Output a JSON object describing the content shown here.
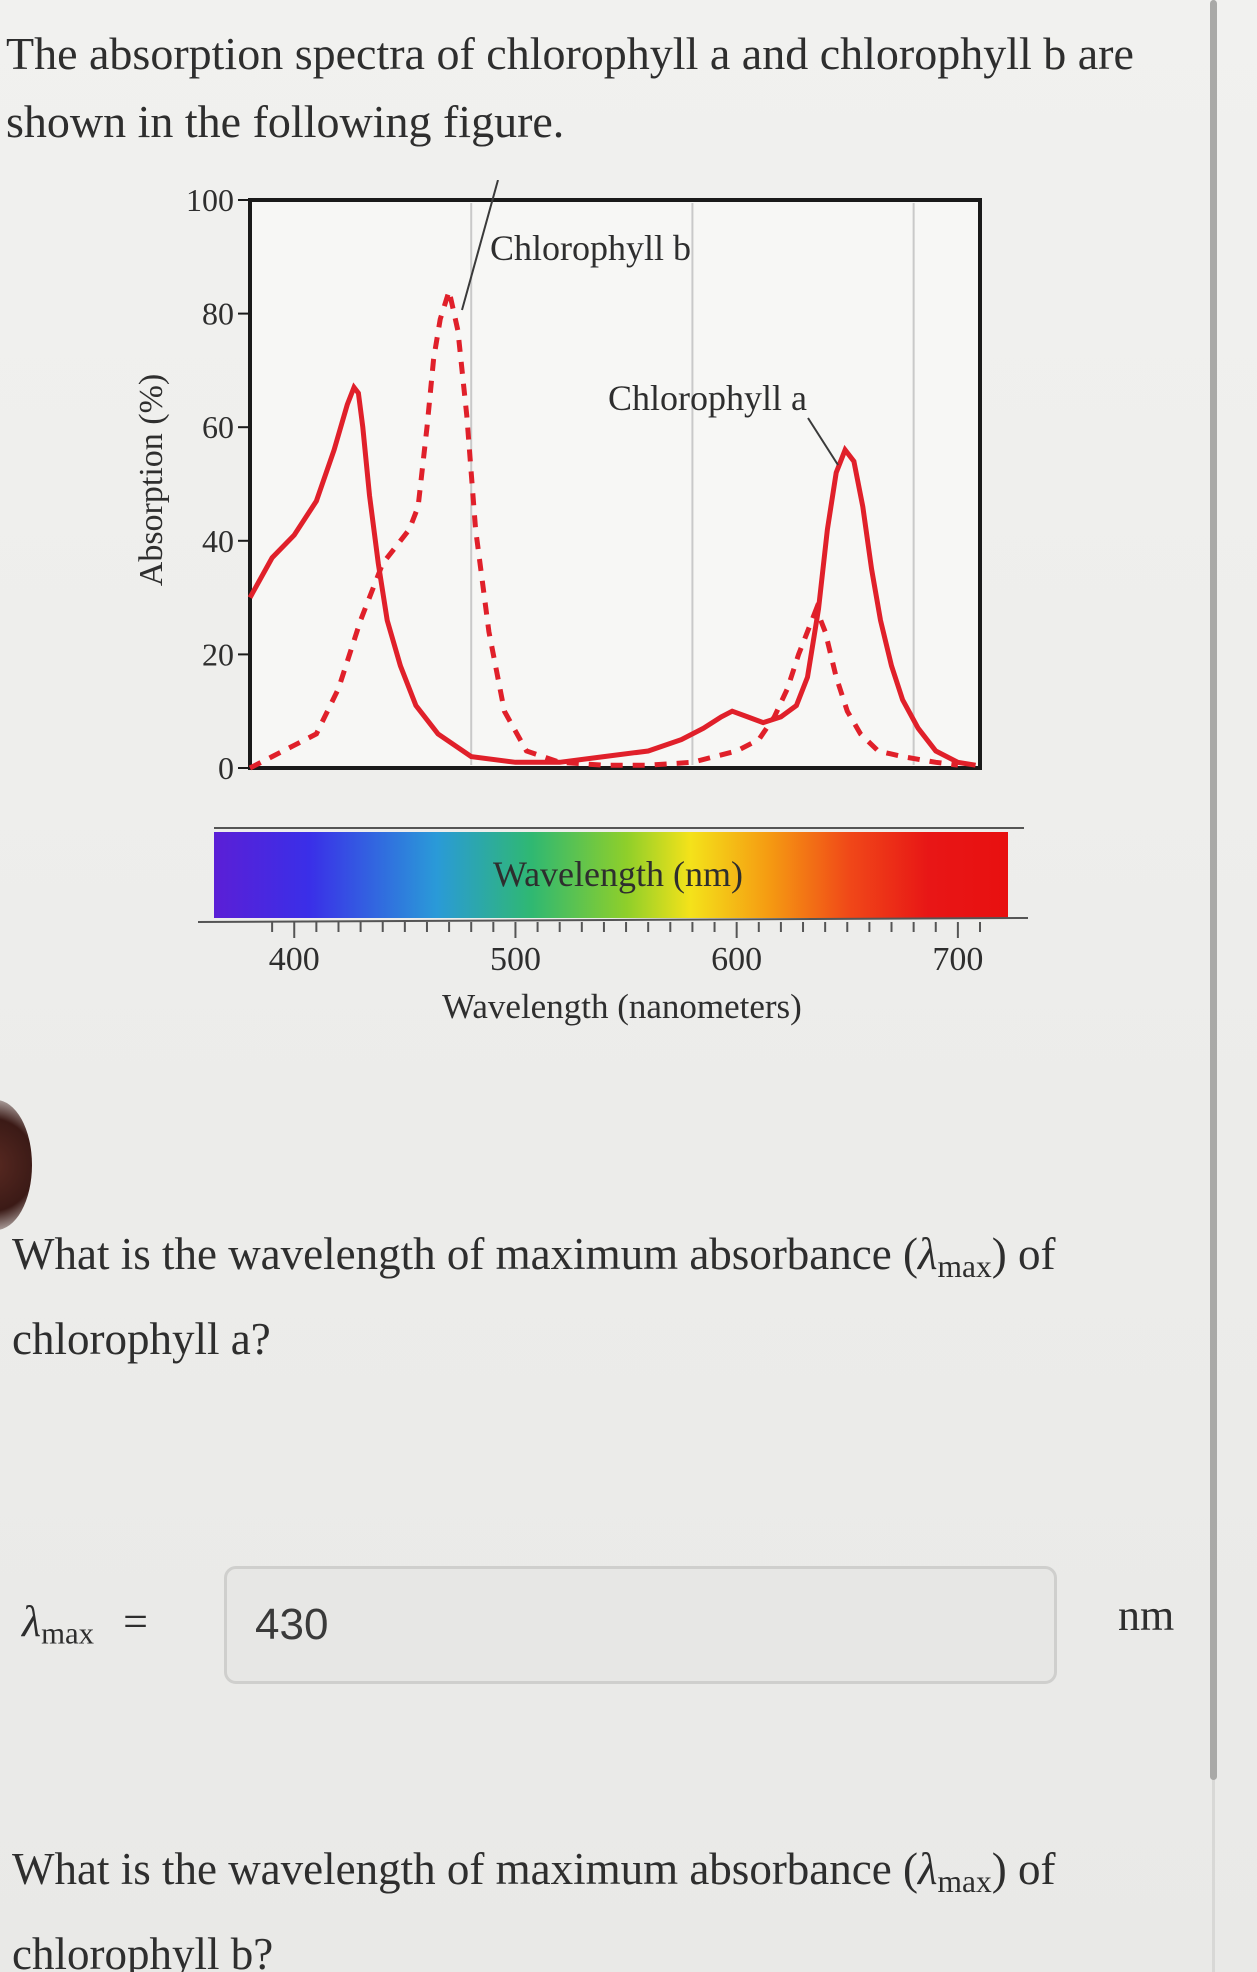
{
  "intro": {
    "text": "The absorption spectra of chlorophyll a and chlorophyll b are shown in the following figure."
  },
  "question1": {
    "prefix": "What is the wavelength of maximum absorbance (",
    "lambda": "λ",
    "subscript": "max",
    "suffix": ") of chlorophyll a?"
  },
  "answer1": {
    "lambda": "λ",
    "subscript": "max",
    "equals": "=",
    "value": "430",
    "unit": "nm"
  },
  "question2": {
    "prefix": "What is the wavelength of maximum absorbance (",
    "lambda": "λ",
    "subscript": "max",
    "suffix": ") of chlorophyll b?"
  },
  "colors": {
    "curve": "#e0202a",
    "frame": "#1a1a1a",
    "grid": "#c9c9c9"
  },
  "chart_data": {
    "type": "line",
    "ylabel": "Absorption (%)",
    "xlabel": "Wavelength (nanometers)",
    "spectrum_label": "Wavelength (nm)",
    "xlim": [
      380,
      710
    ],
    "ylim": [
      0,
      100
    ],
    "grid": "vertical lines at 480, 580, 680",
    "y_ticks": [
      0,
      20,
      40,
      60,
      80,
      100
    ],
    "x_ticks": [
      400,
      500,
      600,
      700
    ],
    "annotations": [
      "Chlorophyll b",
      "Chlorophyll a"
    ],
    "series": [
      {
        "name": "Chlorophyll a",
        "style": "solid",
        "x": [
          380,
          390,
          400,
          410,
          418,
          424,
          427,
          429,
          431,
          434,
          438,
          442,
          448,
          455,
          465,
          480,
          500,
          520,
          540,
          560,
          575,
          585,
          593,
          598,
          605,
          612,
          620,
          627,
          632,
          637,
          641,
          645,
          649,
          653,
          657,
          661,
          665,
          670,
          675,
          682,
          690,
          700,
          708
        ],
        "y": [
          30,
          37,
          41,
          47,
          56,
          64,
          67,
          66,
          60,
          48,
          36,
          26,
          18,
          11,
          6,
          2,
          1,
          1,
          2,
          3,
          5,
          7,
          9,
          10,
          9,
          8,
          9,
          11,
          16,
          28,
          42,
          52,
          56,
          54,
          46,
          35,
          26,
          18,
          12,
          7,
          3,
          1,
          0.5
        ]
      },
      {
        "name": "Chlorophyll b",
        "style": "dashed",
        "x": [
          380,
          390,
          400,
          410,
          420,
          430,
          440,
          446,
          452,
          456,
          460,
          463,
          466,
          470,
          474,
          478,
          482,
          488,
          495,
          505,
          520,
          540,
          560,
          580,
          590,
          600,
          610,
          617,
          623,
          628,
          633,
          636,
          640,
          645,
          650,
          656,
          664,
          675,
          690,
          700
        ],
        "y": [
          0,
          2,
          4,
          6,
          14,
          26,
          36,
          39,
          42,
          46,
          60,
          72,
          79,
          84,
          77,
          62,
          42,
          24,
          10,
          3,
          1,
          0.5,
          0.5,
          1,
          2,
          3,
          5,
          9,
          14,
          20,
          25,
          28,
          24,
          16,
          10,
          6,
          3,
          2,
          1,
          0.5
        ]
      }
    ]
  }
}
